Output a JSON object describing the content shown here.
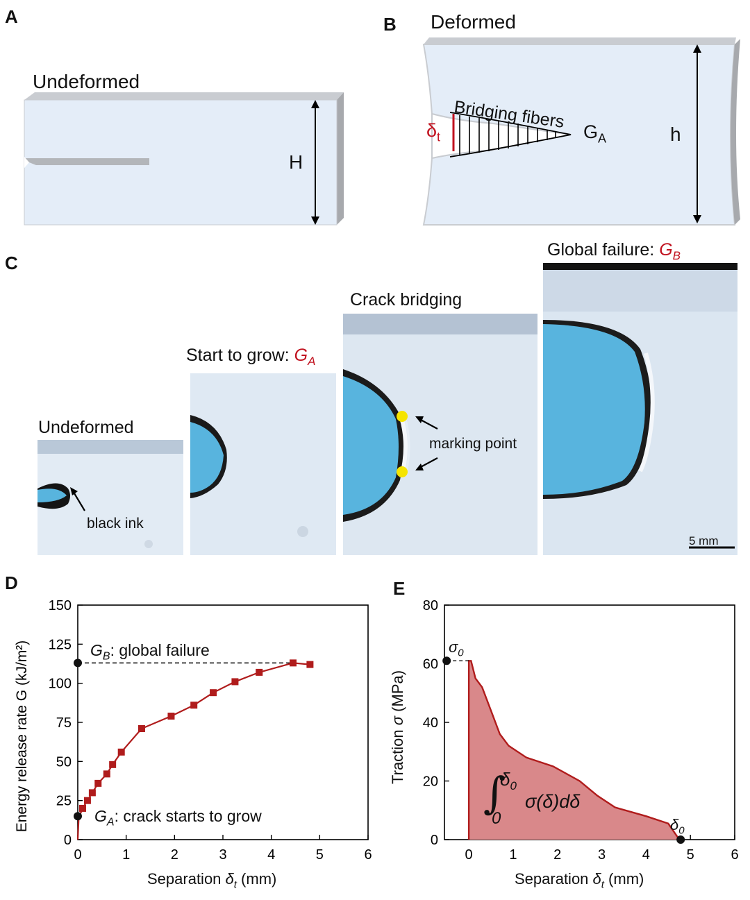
{
  "panels": {
    "A": {
      "label": "A",
      "title": "Undeformed",
      "height_label": "H"
    },
    "B": {
      "label": "B",
      "title": "Deformed",
      "bridging_label": "Bridging fibers",
      "delta_label": "δ",
      "delta_sub": "t",
      "ga_label": "G",
      "ga_sub": "A",
      "height_label": "h"
    },
    "C": {
      "label": "C",
      "frame1": {
        "title": "Undeformed",
        "annotation": "black ink"
      },
      "frame2": {
        "title": "Start to grow: ",
        "title_sym": "G",
        "title_sub": "A"
      },
      "frame3": {
        "title": "Crack bridging",
        "annotation": "marking point"
      },
      "frame4": {
        "title": "Global failure: ",
        "title_sym": "G",
        "title_sub": "B",
        "scale_label": "5 mm"
      }
    },
    "D": {
      "label": "D",
      "annotation_gb": ": global failure",
      "annotation_ga": ": crack starts to grow"
    },
    "E": {
      "label": "E",
      "sigma0": "σ",
      "sigma0_sub": "0",
      "delta0": "δ",
      "delta0_sub": "0",
      "integral_upper": "δ",
      "integral_upper_sub": "0",
      "integral_lower": "0",
      "integral_expr": "σ(δ)dδ"
    }
  },
  "colors": {
    "accent": "#b01c1c",
    "fill": "#d9888a",
    "specimen": "#e4edf8",
    "photo_blue": "#58b4de",
    "marker": "#f5e400"
  },
  "chart_data": [
    {
      "id": "D",
      "type": "line",
      "title": "",
      "xlabel": "Separation δt (mm)",
      "ylabel": "Energy release rate G (kJ/m²)",
      "xlim": [
        0,
        6
      ],
      "ylim": [
        0,
        150
      ],
      "xticks": [
        "0",
        "1",
        "2",
        "3",
        "4",
        "5",
        "6"
      ],
      "yticks": [
        "0",
        "25",
        "50",
        "75",
        "100",
        "125",
        "150"
      ],
      "series": [
        {
          "name": "G",
          "marker": "square",
          "x": [
            0.0,
            0.02,
            0.1,
            0.2,
            0.3,
            0.42,
            0.6,
            0.72,
            0.9,
            1.32,
            1.93,
            2.4,
            2.8,
            3.25,
            3.75,
            4.45,
            4.8
          ],
          "y": [
            0,
            14,
            20,
            25,
            30,
            36,
            42,
            48,
            56,
            71,
            79,
            86,
            94,
            101,
            107,
            113,
            112
          ]
        }
      ],
      "reference_points": [
        {
          "name": "GB",
          "y": 113
        },
        {
          "name": "GA",
          "y": 15
        }
      ],
      "labels": {
        "gb_sym": "G",
        "gb_sub": "B",
        "ga_sym": "G",
        "ga_sub": "A"
      }
    },
    {
      "id": "E",
      "type": "area",
      "title": "",
      "xlabel": "Separation δt (mm)",
      "ylabel": "Traction σ (MPa)",
      "xlim": [
        -0.55,
        6
      ],
      "ylim": [
        0,
        80
      ],
      "xticks": [
        "0",
        "1",
        "2",
        "3",
        "4",
        "5",
        "6"
      ],
      "yticks": [
        "0",
        "20",
        "40",
        "60",
        "80"
      ],
      "series": [
        {
          "name": "traction",
          "x": [
            0,
            0,
            0.05,
            0.1,
            0.15,
            0.3,
            0.5,
            0.7,
            0.9,
            1.3,
            1.9,
            2.5,
            2.9,
            3.3,
            4.0,
            4.5,
            4.75
          ],
          "y": [
            0,
            61,
            61,
            58,
            55,
            52,
            44,
            36,
            32,
            28,
            25,
            20,
            15,
            11,
            8,
            5.5,
            0
          ]
        }
      ],
      "reference_points": [
        {
          "name": "sigma0",
          "x": -0.5,
          "y": 61
        },
        {
          "name": "delta0",
          "x": 4.78,
          "y": 0
        }
      ]
    }
  ]
}
